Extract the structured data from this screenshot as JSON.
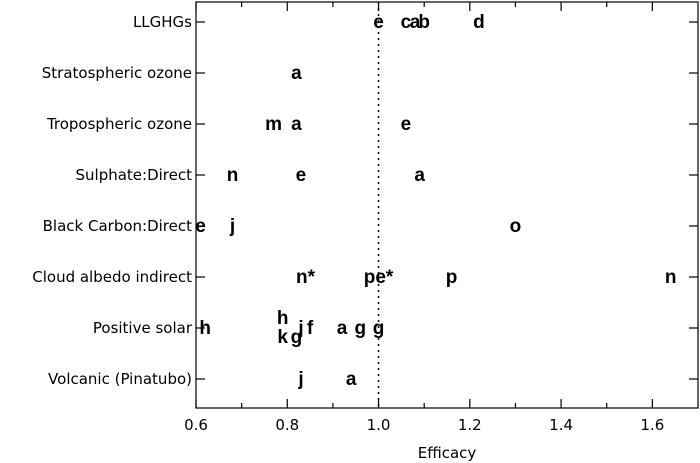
{
  "chart_data": {
    "type": "scatter",
    "title": "",
    "xlabel": "Efficacy",
    "ylabel": "",
    "xlim": [
      0.6,
      1.7
    ],
    "xticks": [
      "0.6",
      "0.8",
      "1.0",
      "1.2",
      "1.4",
      "1.6"
    ],
    "reference_line": {
      "x": 1.0,
      "style": "dotted"
    },
    "categories": [
      "LLGHGs",
      "Stratospheric ozone",
      "Tropospheric ozone",
      "Sulphate:Direct",
      "Black Carbon:Direct",
      "Cloud albedo indirect",
      "Positive solar",
      "Volcanic (Pinatubo)"
    ],
    "points": [
      {
        "category": "LLGHGs",
        "x": 1.0,
        "label": "e"
      },
      {
        "category": "LLGHGs",
        "x": 1.06,
        "label": "c"
      },
      {
        "category": "LLGHGs",
        "x": 1.08,
        "label": "a"
      },
      {
        "category": "LLGHGs",
        "x": 1.1,
        "label": "b"
      },
      {
        "category": "LLGHGs",
        "x": 1.22,
        "label": "d"
      },
      {
        "category": "Stratospheric ozone",
        "x": 0.82,
        "label": "a"
      },
      {
        "category": "Tropospheric ozone",
        "x": 0.77,
        "label": "m"
      },
      {
        "category": "Tropospheric ozone",
        "x": 0.82,
        "label": "a"
      },
      {
        "category": "Tropospheric ozone",
        "x": 1.06,
        "label": "e"
      },
      {
        "category": "Sulphate:Direct",
        "x": 0.68,
        "label": "n"
      },
      {
        "category": "Sulphate:Direct",
        "x": 0.83,
        "label": "e"
      },
      {
        "category": "Sulphate:Direct",
        "x": 1.09,
        "label": "a"
      },
      {
        "category": "Black Carbon:Direct",
        "x": 0.61,
        "label": "e"
      },
      {
        "category": "Black Carbon:Direct",
        "x": 0.68,
        "label": "j"
      },
      {
        "category": "Black Carbon:Direct",
        "x": 1.3,
        "label": "o"
      },
      {
        "category": "Cloud albedo indirect",
        "x": 0.84,
        "label": "n*"
      },
      {
        "category": "Cloud albedo indirect",
        "x": 1.0,
        "label": "pe*"
      },
      {
        "category": "Cloud albedo indirect",
        "x": 1.16,
        "label": "p"
      },
      {
        "category": "Cloud albedo indirect",
        "x": 1.64,
        "label": "n"
      },
      {
        "category": "Positive solar",
        "x": 0.62,
        "label": "h"
      },
      {
        "category": "Positive solar",
        "x": 0.79,
        "label": "h",
        "offset": "above"
      },
      {
        "category": "Positive solar",
        "x": 0.79,
        "label": "k",
        "offset": "below"
      },
      {
        "category": "Positive solar",
        "x": 0.82,
        "label": "g",
        "offset": "below"
      },
      {
        "category": "Positive solar",
        "x": 0.83,
        "label": "j"
      },
      {
        "category": "Positive solar",
        "x": 0.85,
        "label": "f"
      },
      {
        "category": "Positive solar",
        "x": 0.92,
        "label": "a"
      },
      {
        "category": "Positive solar",
        "x": 0.96,
        "label": "g"
      },
      {
        "category": "Positive solar",
        "x": 1.0,
        "label": "g"
      },
      {
        "category": "Volcanic (Pinatubo)",
        "x": 0.83,
        "label": "j"
      },
      {
        "category": "Volcanic (Pinatubo)",
        "x": 0.94,
        "label": "a"
      }
    ]
  }
}
